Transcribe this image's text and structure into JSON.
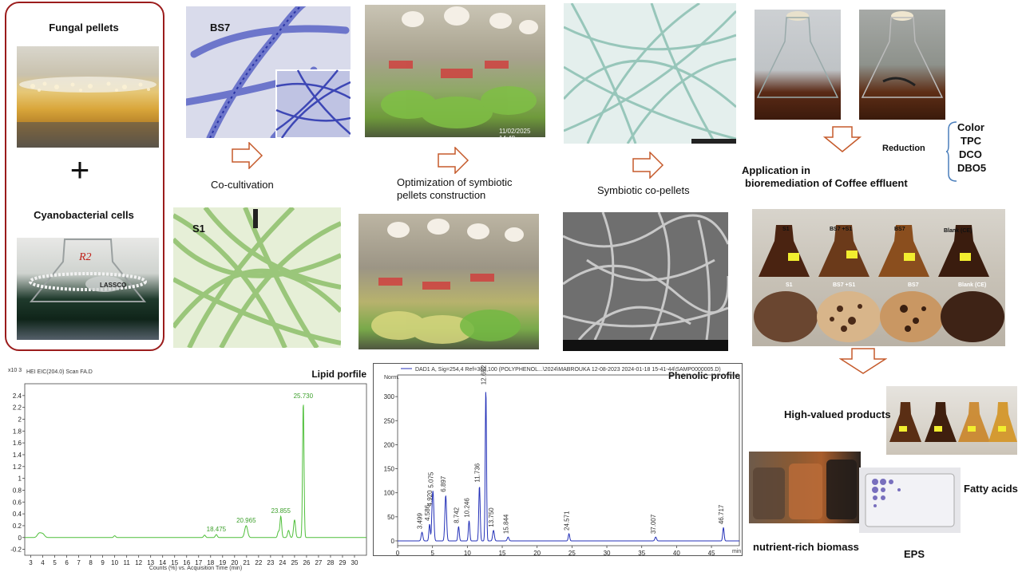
{
  "left_panel": {
    "fungal_label": "Fungal pellets",
    "plus": "+",
    "cyano_label": "Cyanobacterial cells",
    "flask2_label": "R2"
  },
  "micrographs": {
    "bs7_label": "BS7",
    "s1_label": "S1",
    "timestamp": "11/02/2025  14:48"
  },
  "steps": {
    "cocultivation": "Co-cultivation",
    "optimization": "Optimization of symbiotic pellets construction",
    "symbiotic": "Symbiotic co-pellets",
    "application_line1": "Application in",
    "application_line2": "bioremediation of Coffee effluent"
  },
  "reduction": {
    "label": "Reduction",
    "items": [
      "Color",
      "TPC",
      "DCO",
      "DBO5"
    ]
  },
  "treatment_photo": {
    "flask_labels": [
      "S1",
      "BS7 +S1",
      "BS7",
      "Blank (CE)"
    ],
    "dish_labels": [
      "S1",
      "BS7 +S1",
      "BS7",
      "Blank (CE)"
    ]
  },
  "products": {
    "high_valued": "High-valued products",
    "fatty_acids": "Fatty acids",
    "biomass": "nutrient-rich biomass",
    "eps": "EPS"
  },
  "colors": {
    "border_red": "#9b1c1c",
    "arrow_fill": "#ffffff",
    "arrow_stroke": "#c55a2b",
    "lipid_line": "#4fbf3a",
    "phenolic_line": "#2431b8",
    "brace": "#4a7ebb"
  },
  "chart_data": [
    {
      "type": "line",
      "title": "Lipid porfile",
      "header": "HEI EIC(204.0) Scan FA.D",
      "y_exponent_label": "x10 3",
      "xlabel": "Counts (%) vs. Acquisition Time (min)",
      "ylabel": "",
      "xlim": [
        2.5,
        31
      ],
      "ylim": [
        -0.3,
        2.6
      ],
      "x_ticks": [
        3,
        4,
        5,
        6,
        7,
        8,
        9,
        10,
        11,
        12,
        13,
        14,
        15,
        16,
        17,
        18,
        19,
        20,
        21,
        22,
        23,
        24,
        25,
        26,
        27,
        28,
        29,
        30
      ],
      "y_ticks": [
        -0.2,
        0,
        0.2,
        0.4,
        0.6,
        0.8,
        1,
        1.2,
        1.4,
        1.6,
        1.8,
        2,
        2.2,
        2.4
      ],
      "peaks": [
        {
          "x": 3.7,
          "y": 0.07,
          "w": 0.15
        },
        {
          "x": 4.0,
          "y": 0.06,
          "w": 0.15
        },
        {
          "x": 10.0,
          "y": 0.03,
          "w": 0.08
        },
        {
          "x": 17.5,
          "y": 0.04,
          "w": 0.08
        },
        {
          "x": 18.475,
          "y": 0.05,
          "w": 0.08
        },
        {
          "x": 20.965,
          "y": 0.2,
          "w": 0.12
        },
        {
          "x": 23.655,
          "y": 0.1,
          "w": 0.07
        },
        {
          "x": 23.855,
          "y": 0.36,
          "w": 0.07
        },
        {
          "x": 24.5,
          "y": 0.12,
          "w": 0.08
        },
        {
          "x": 25.0,
          "y": 0.3,
          "w": 0.08
        },
        {
          "x": 25.73,
          "y": 2.3,
          "w": 0.06
        }
      ],
      "peak_labels": [
        {
          "x": 18.475,
          "label": "18.475"
        },
        {
          "x": 20.965,
          "label": "20.965"
        },
        {
          "x": 23.855,
          "label": "23.855"
        },
        {
          "x": 25.73,
          "label": "25.730"
        }
      ]
    },
    {
      "type": "line",
      "title": "Phenolic profile",
      "header": "DAD1 A, Sig=254,4 Ref=360,100 (POLYPHENOL...\\2024\\MABROUKA 12-08-2023  2024-01-18 15-41-44\\SAMP0000005.D)",
      "xlabel": "min",
      "ylabel": "Norm.",
      "xlim": [
        0,
        49
      ],
      "ylim": [
        -10,
        345
      ],
      "x_ticks": [
        0,
        5,
        10,
        15,
        20,
        25,
        30,
        35,
        40,
        45
      ],
      "y_ticks": [
        0,
        50,
        100,
        150,
        200,
        250,
        300
      ],
      "peaks": [
        {
          "x": 3.499,
          "y": 18,
          "w": 0.12
        },
        {
          "x": 4.586,
          "y": 35,
          "w": 0.1
        },
        {
          "x": 4.92,
          "y": 22,
          "w": 0.08
        },
        {
          "x": 5.075,
          "y": 100,
          "w": 0.12
        },
        {
          "x": 6.897,
          "y": 95,
          "w": 0.12
        },
        {
          "x": 8.742,
          "y": 30,
          "w": 0.1
        },
        {
          "x": 10.246,
          "y": 42,
          "w": 0.1
        },
        {
          "x": 11.736,
          "y": 115,
          "w": 0.1
        },
        {
          "x": 12.652,
          "y": 318,
          "w": 0.09
        },
        {
          "x": 13.75,
          "y": 22,
          "w": 0.12
        },
        {
          "x": 15.844,
          "y": 8,
          "w": 0.12
        },
        {
          "x": 24.571,
          "y": 15,
          "w": 0.1
        },
        {
          "x": 37.007,
          "y": 8,
          "w": 0.12
        },
        {
          "x": 46.717,
          "y": 28,
          "w": 0.1
        }
      ],
      "peak_labels": [
        {
          "x": 3.499,
          "label": "3.499"
        },
        {
          "x": 4.586,
          "label": "4.586"
        },
        {
          "x": 4.92,
          "label": "4.920"
        },
        {
          "x": 5.075,
          "label": "5.075"
        },
        {
          "x": 6.897,
          "label": "6.897"
        },
        {
          "x": 8.742,
          "label": "8.742"
        },
        {
          "x": 10.246,
          "label": "10.246"
        },
        {
          "x": 11.736,
          "label": "11.736"
        },
        {
          "x": 12.652,
          "label": "12.652"
        },
        {
          "x": 13.75,
          "label": "13.750"
        },
        {
          "x": 15.844,
          "label": "15.844"
        },
        {
          "x": 24.571,
          "label": "24.571"
        },
        {
          "x": 37.007,
          "label": "37.007"
        },
        {
          "x": 46.717,
          "label": "46.717"
        }
      ]
    }
  ]
}
